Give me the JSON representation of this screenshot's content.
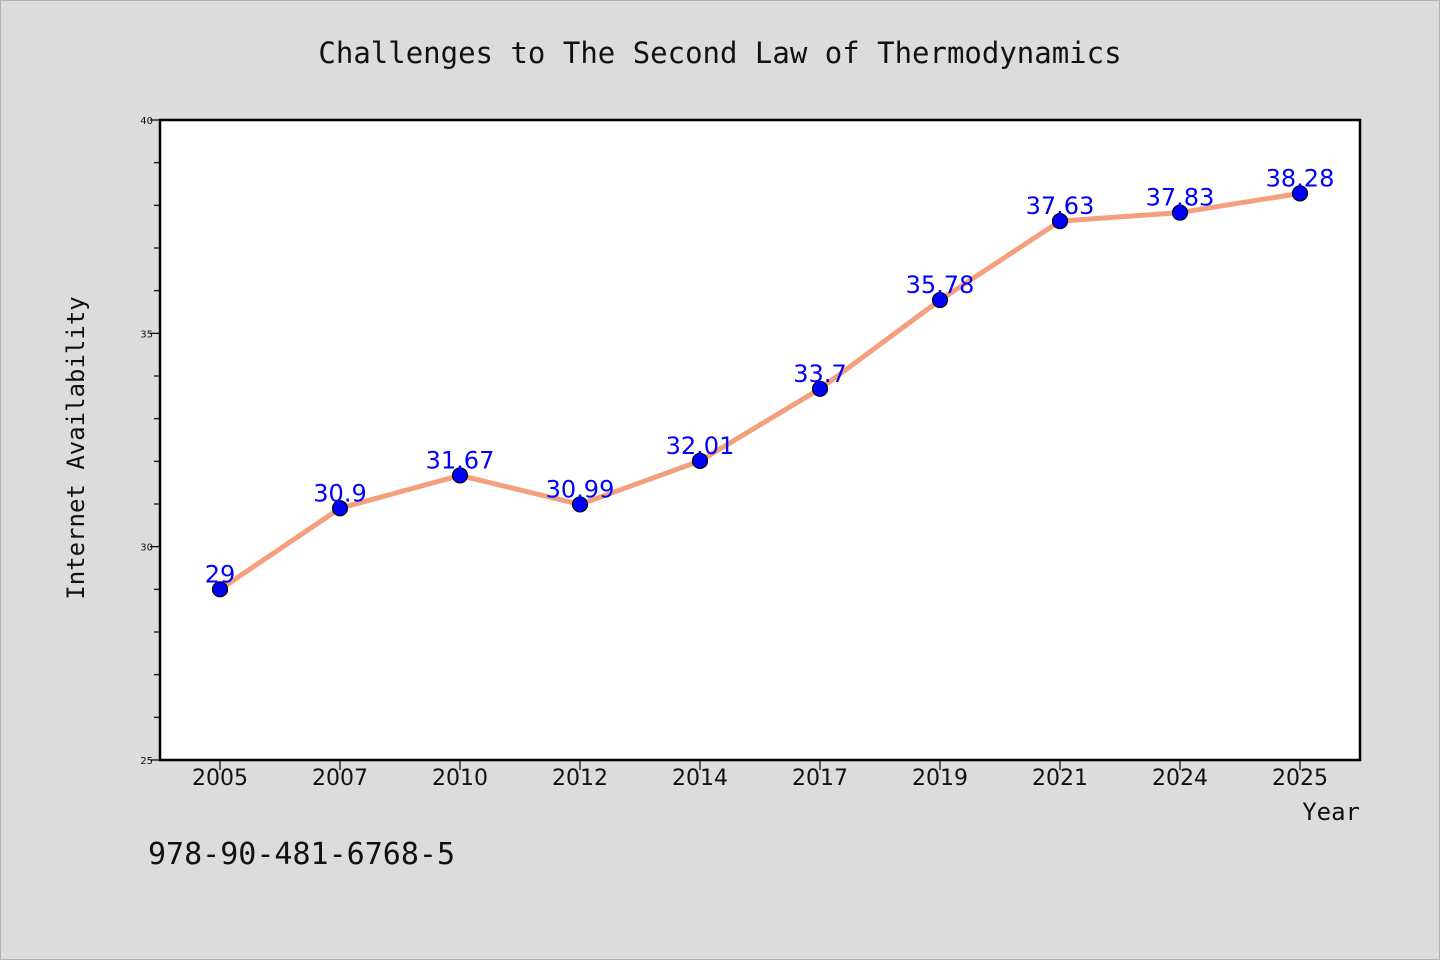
{
  "chart_data": {
    "type": "line",
    "title": "Challenges to The Second Law of Thermodynamics",
    "xlabel": "Year",
    "ylabel": "Internet Availability",
    "categories": [
      "2005",
      "2007",
      "2010",
      "2012",
      "2014",
      "2017",
      "2019",
      "2021",
      "2024",
      "2025"
    ],
    "values": [
      29,
      30.9,
      31.67,
      30.99,
      32.01,
      33.7,
      35.78,
      37.63,
      37.83,
      38.28
    ],
    "data_labels": [
      "29",
      "30.9",
      "31.67",
      "30.99",
      "32.01",
      "33.7",
      "35.78",
      "37.63",
      "37.83",
      "38.28"
    ],
    "ylim": [
      25,
      40
    ],
    "y_ticks": [
      25,
      30,
      35,
      40
    ],
    "y_tick_labels": [
      "25",
      "30",
      "35",
      "40"
    ],
    "grid": false,
    "legend": "none",
    "line_color": "#f4a07c",
    "marker_color": "#0000ff",
    "label_color": "#0000ff"
  },
  "footer": {
    "identifier": "978-90-481-6768-5"
  }
}
